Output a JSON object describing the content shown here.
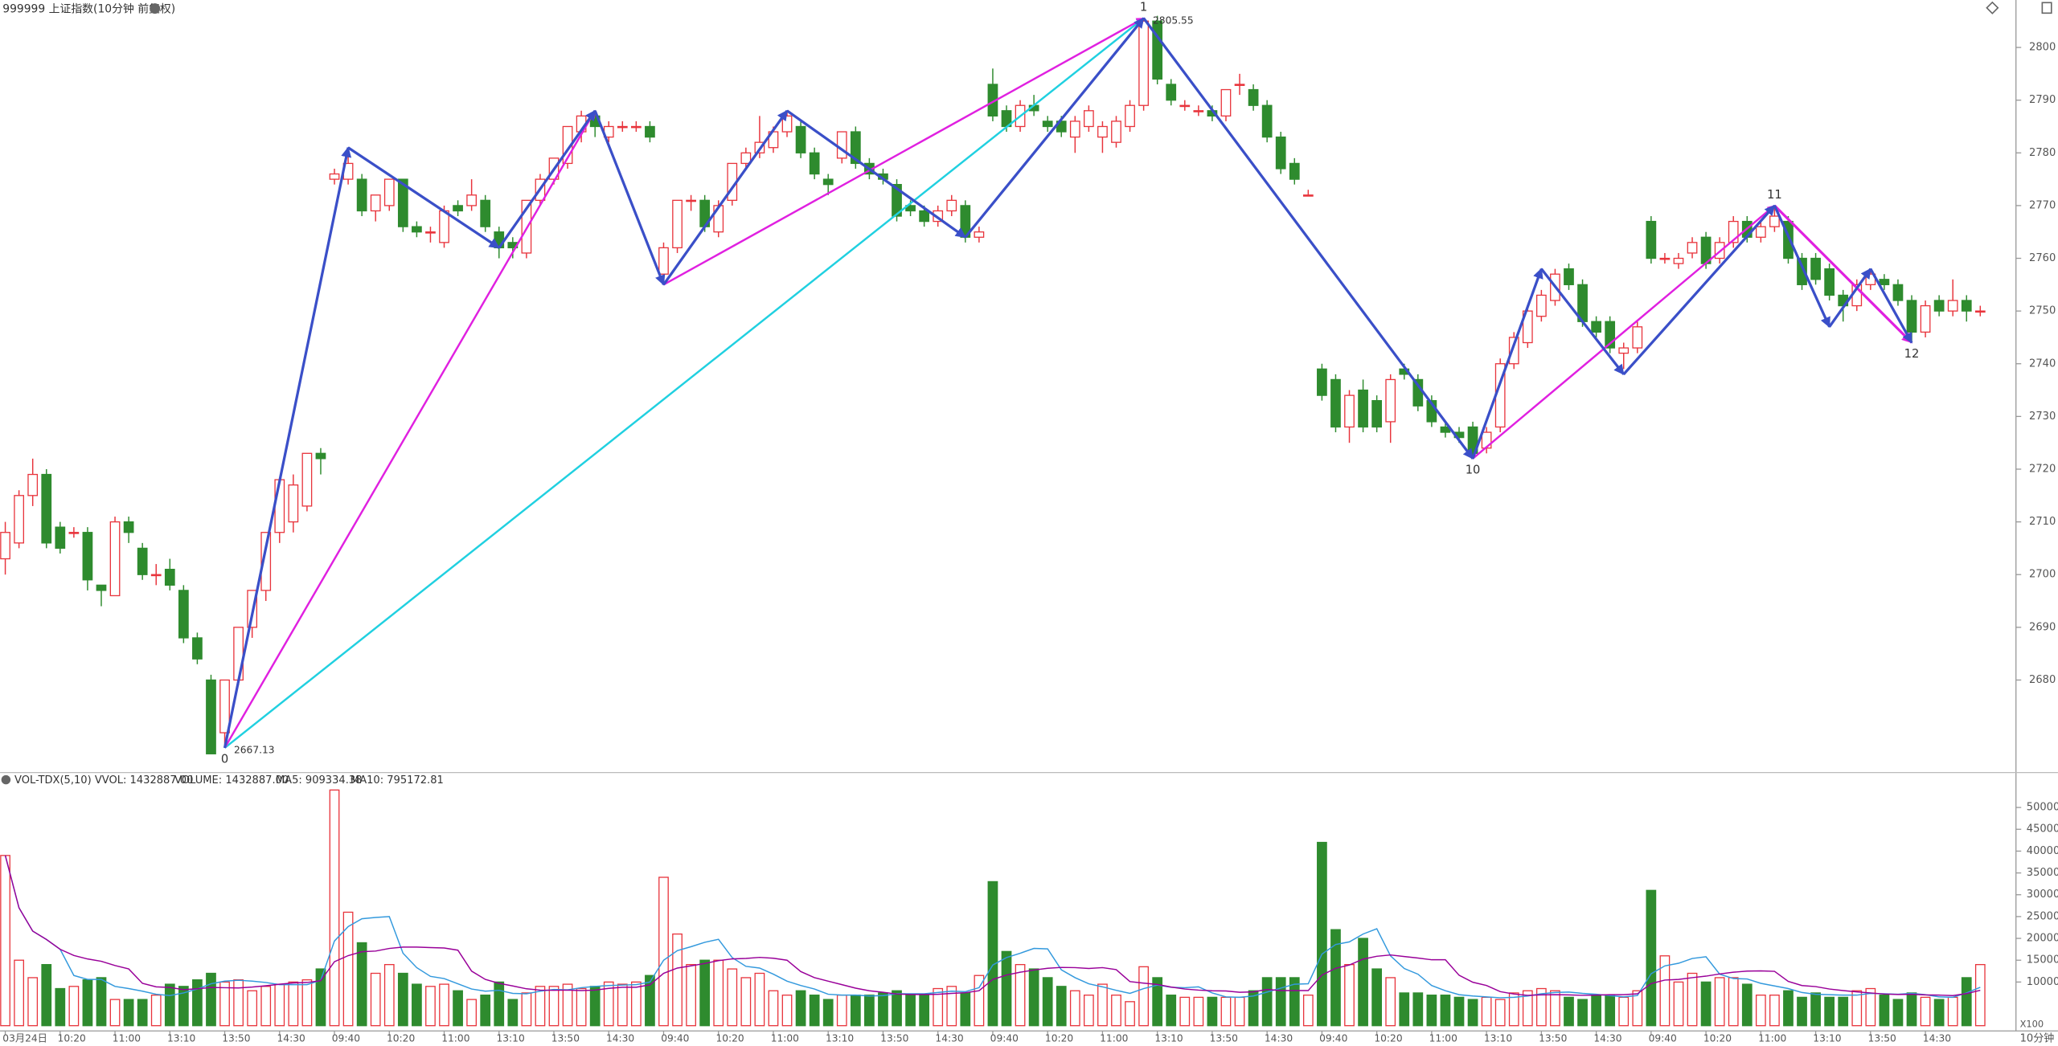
{
  "chart_data": {
    "type": "candlestick",
    "title": "999999 上证指数(10分钟 前复权)",
    "up_color": "#e8343c",
    "down_color": "#2e8b2e",
    "categories": [
      "03月24日",
      null,
      null,
      null,
      "10:20",
      null,
      null,
      null,
      "11:00",
      null,
      null,
      null,
      "13:10",
      null,
      null,
      null,
      "13:50",
      null,
      null,
      null,
      "14:30",
      null,
      null,
      null,
      "09:40",
      null,
      null,
      null,
      "10:20",
      null,
      null,
      null,
      "11:00",
      null,
      null,
      null,
      "13:10",
      null,
      null,
      null,
      "13:50",
      null,
      null,
      null,
      "14:30",
      null,
      null,
      null,
      "09:40",
      null,
      null,
      null,
      "10:20",
      null,
      null,
      null,
      "11:00",
      null,
      null,
      null,
      "13:10",
      null,
      null,
      null,
      "13:50",
      null,
      null,
      null,
      "14:30",
      null,
      null,
      null,
      "09:40",
      null,
      null,
      null,
      "10:20",
      null,
      null,
      null,
      "11:00",
      null,
      null,
      null,
      "13:10",
      null,
      null,
      null,
      "13:50",
      null,
      null,
      null,
      "14:30",
      null,
      null,
      null,
      "09:40",
      null,
      null,
      null,
      "10:20",
      null,
      null,
      null,
      "11:00",
      null,
      null,
      null,
      "13:10",
      null,
      null,
      null,
      "13:50",
      null,
      null,
      null,
      "14:30",
      null,
      null,
      null,
      "09:40",
      null,
      null,
      null,
      "10:20",
      null,
      null,
      null,
      "11:00",
      null,
      null,
      null,
      "13:10",
      null,
      null,
      null,
      "13:50",
      null,
      null,
      null,
      "14:30",
      null,
      null,
      null,
      null
    ],
    "ohlc": [
      [
        2703,
        2710,
        2700,
        2708
      ],
      [
        2706,
        2716,
        2705,
        2715
      ],
      [
        2715,
        2722,
        2713,
        2719
      ],
      [
        2719,
        2720,
        2705,
        2706
      ],
      [
        2709,
        2710,
        2704,
        2705
      ],
      [
        2708,
        2709,
        2707,
        2708
      ],
      [
        2708,
        2709,
        2697,
        2699
      ],
      [
        2698,
        2698,
        2694,
        2697
      ],
      [
        2696,
        2711,
        2696,
        2710
      ],
      [
        2710,
        2711,
        2706,
        2708
      ],
      [
        2705,
        2706,
        2699,
        2700
      ],
      [
        2700,
        2702,
        2698,
        2700
      ],
      [
        2701,
        2703,
        2697,
        2698
      ],
      [
        2697,
        2698,
        2687,
        2688
      ],
      [
        2688,
        2689,
        2683,
        2684
      ],
      [
        2680,
        2681,
        2666,
        2666
      ],
      [
        2670,
        2680,
        2667.13,
        2680
      ],
      [
        2680,
        2690,
        2679,
        2690
      ],
      [
        2690,
        2697,
        2688,
        2697
      ],
      [
        2697,
        2708,
        2695,
        2708
      ],
      [
        2708,
        2718,
        2706,
        2718
      ],
      [
        2710,
        2719,
        2708,
        2717
      ],
      [
        2713,
        2723,
        2712,
        2723
      ],
      [
        2723,
        2724,
        2719,
        2722
      ],
      [
        2775,
        2777,
        2774,
        2776
      ],
      [
        2775,
        2781,
        2774,
        2778
      ],
      [
        2775,
        2776,
        2768,
        2769
      ],
      [
        2769,
        2772,
        2767,
        2772
      ],
      [
        2770,
        2775,
        2769,
        2775
      ],
      [
        2775,
        2775,
        2765,
        2766
      ],
      [
        2766,
        2767,
        2764,
        2765
      ],
      [
        2765,
        2766,
        2763,
        2765
      ],
      [
        2763,
        2770,
        2762,
        2769
      ],
      [
        2770,
        2771,
        2768,
        2769
      ],
      [
        2770,
        2775,
        2769,
        2772
      ],
      [
        2771,
        2772,
        2765,
        2766
      ],
      [
        2765,
        2766,
        2760,
        2762
      ],
      [
        2763,
        2764,
        2760,
        2762
      ],
      [
        2761,
        2771,
        2760,
        2771
      ],
      [
        2771,
        2776,
        2770,
        2775
      ],
      [
        2775,
        2779,
        2774,
        2779
      ],
      [
        2778,
        2785,
        2777,
        2785
      ],
      [
        2784,
        2788,
        2782,
        2787
      ],
      [
        2787,
        2788,
        2783,
        2785
      ],
      [
        2783,
        2786,
        2782,
        2785
      ],
      [
        2785,
        2786,
        2784,
        2785
      ],
      [
        2785,
        2786,
        2784,
        2785
      ],
      [
        2785,
        2786,
        2782,
        2783
      ],
      [
        2757,
        2763,
        2755,
        2762
      ],
      [
        2762,
        2771,
        2761,
        2771
      ],
      [
        2771,
        2772,
        2769,
        2771
      ],
      [
        2771,
        2772,
        2765,
        2766
      ],
      [
        2765,
        2771,
        2764,
        2770
      ],
      [
        2771,
        2778,
        2770,
        2778
      ],
      [
        2778,
        2781,
        2777,
        2780
      ],
      [
        2780,
        2787,
        2779,
        2782
      ],
      [
        2781,
        2785,
        2780,
        2784
      ],
      [
        2784,
        2788,
        2783,
        2787
      ],
      [
        2785,
        2786,
        2779,
        2780
      ],
      [
        2780,
        2781,
        2775,
        2776
      ],
      [
        2775,
        2776,
        2772,
        2774
      ],
      [
        2779,
        2784,
        2778,
        2784
      ],
      [
        2784,
        2785,
        2777,
        2778
      ],
      [
        2778,
        2779,
        2775,
        2776
      ],
      [
        2776,
        2777,
        2774,
        2775
      ],
      [
        2774,
        2775,
        2767,
        2768
      ],
      [
        2770,
        2771,
        2768,
        2769
      ],
      [
        2769,
        2770,
        2766,
        2767
      ],
      [
        2767,
        2770,
        2766,
        2769
      ],
      [
        2769,
        2772,
        2768,
        2771
      ],
      [
        2770,
        2771,
        2763,
        2764
      ],
      [
        2764,
        2766,
        2763,
        2765
      ],
      [
        2793,
        2796,
        2786,
        2787
      ],
      [
        2788,
        2789,
        2784,
        2785
      ],
      [
        2785,
        2790,
        2784,
        2789
      ],
      [
        2789,
        2791,
        2787,
        2788
      ],
      [
        2786,
        2787,
        2784,
        2785
      ],
      [
        2786,
        2787,
        2783,
        2784
      ],
      [
        2783,
        2787,
        2780,
        2786
      ],
      [
        2785,
        2789,
        2784,
        2788
      ],
      [
        2783,
        2786,
        2780,
        2785
      ],
      [
        2782,
        2787,
        2781,
        2786
      ],
      [
        2785,
        2790,
        2784,
        2789
      ],
      [
        2789,
        2805.55,
        2788,
        2805
      ],
      [
        2805,
        2806,
        2793,
        2794
      ],
      [
        2793,
        2794,
        2789,
        2790
      ],
      [
        2789,
        2790,
        2788,
        2789
      ],
      [
        2788,
        2789,
        2787,
        2788
      ],
      [
        2788,
        2789,
        2786,
        2787
      ],
      [
        2787,
        2792,
        2786,
        2792
      ],
      [
        2793,
        2795,
        2791,
        2793
      ],
      [
        2792,
        2793,
        2788,
        2789
      ],
      [
        2789,
        2790,
        2782,
        2783
      ],
      [
        2783,
        2784,
        2776,
        2777
      ],
      [
        2778,
        2779,
        2774,
        2775
      ],
      [
        2772,
        2773,
        2772,
        2772
      ],
      [
        2739,
        2740,
        2733,
        2734
      ],
      [
        2737,
        2738,
        2727,
        2728
      ],
      [
        2728,
        2735,
        2725,
        2734
      ],
      [
        2735,
        2737,
        2727,
        2728
      ],
      [
        2733,
        2734,
        2727,
        2728
      ],
      [
        2729,
        2738,
        2725,
        2737
      ],
      [
        2739,
        2740,
        2737,
        2738
      ],
      [
        2737,
        2738,
        2731,
        2732
      ],
      [
        2733,
        2734,
        2728,
        2729
      ],
      [
        2728,
        2729,
        2726,
        2727
      ],
      [
        2727,
        2728,
        2725,
        2726
      ],
      [
        2728,
        2729,
        2722,
        2723
      ],
      [
        2724,
        2728,
        2723,
        2727
      ],
      [
        2728,
        2741,
        2727,
        2740
      ],
      [
        2740,
        2746,
        2739,
        2745
      ],
      [
        2744,
        2751,
        2743,
        2750
      ],
      [
        2749,
        2754,
        2748,
        2753
      ],
      [
        2752,
        2758,
        2751,
        2757
      ],
      [
        2758,
        2759,
        2754,
        2755
      ],
      [
        2755,
        2756,
        2747,
        2748
      ],
      [
        2748,
        2749,
        2745,
        2746
      ],
      [
        2748,
        2749,
        2742,
        2743
      ],
      [
        2742,
        2744,
        2739,
        2743
      ],
      [
        2743,
        2748,
        2742,
        2747
      ],
      [
        2767,
        2768,
        2759,
        2760
      ],
      [
        2760,
        2761,
        2759,
        2760
      ],
      [
        2759,
        2761,
        2758,
        2760
      ],
      [
        2761,
        2764,
        2760,
        2763
      ],
      [
        2764,
        2765,
        2758,
        2759
      ],
      [
        2760,
        2764,
        2759,
        2763
      ],
      [
        2763,
        2768,
        2762,
        2767
      ],
      [
        2767,
        2768,
        2763,
        2764
      ],
      [
        2764,
        2767,
        2763,
        2766
      ],
      [
        2766,
        2770,
        2765,
        2768
      ],
      [
        2767,
        2768,
        2759,
        2760
      ],
      [
        2760,
        2761,
        2754,
        2755
      ],
      [
        2760,
        2761,
        2755,
        2756
      ],
      [
        2758,
        2759,
        2752,
        2753
      ],
      [
        2753,
        2754,
        2748,
        2751
      ],
      [
        2751,
        2756,
        2750,
        2755
      ],
      [
        2755,
        2758,
        2754,
        2757
      ],
      [
        2756,
        2757,
        2754,
        2755
      ],
      [
        2755,
        2756,
        2751,
        2752
      ],
      [
        2752,
        2753,
        2744,
        2746
      ],
      [
        2746,
        2752,
        2745,
        2751
      ],
      [
        2752,
        2753,
        2749,
        2750
      ],
      [
        2750,
        2756,
        2749,
        2752
      ],
      [
        2752,
        2753,
        2748,
        2750
      ],
      [
        2750,
        2751,
        2749,
        2750
      ]
    ],
    "ylim": [
      2662.7,
      2809
    ],
    "yticks": [
      2680,
      2690,
      2700,
      2710,
      2720,
      2730,
      2740,
      2750,
      2760,
      2770,
      2780,
      2790,
      2800
    ],
    "pivots": [
      {
        "x": 16,
        "y": 2667.13,
        "label": "0",
        "side": "below",
        "price_label": true
      },
      {
        "x": 25,
        "y": 2781
      },
      {
        "x": 36,
        "y": 2762
      },
      {
        "x": 43,
        "y": 2788
      },
      {
        "x": 48,
        "y": 2755
      },
      {
        "x": 57,
        "y": 2788
      },
      {
        "x": 70,
        "y": 2764
      },
      {
        "x": 83,
        "y": 2805.55,
        "label": "1",
        "side": "above",
        "price_label": true
      },
      {
        "x": 107,
        "y": 2722,
        "label": "10",
        "side": "below"
      },
      {
        "x": 112,
        "y": 2758
      },
      {
        "x": 118,
        "y": 2738
      },
      {
        "x": 129,
        "y": 2770,
        "label": "11",
        "side": "above"
      },
      {
        "x": 133,
        "y": 2747
      },
      {
        "x": 136,
        "y": 2758
      },
      {
        "x": 139,
        "y": 2744,
        "label": "12",
        "side": "below"
      }
    ],
    "waves": [
      {
        "color": "#20d0e0",
        "width": 1.5,
        "path": [
          0,
          7
        ]
      },
      {
        "color": "#e020e0",
        "width": 1.5,
        "path": [
          0,
          3
        ]
      },
      {
        "color": "#e020e0",
        "width": 1.5,
        "path": [
          4,
          7
        ]
      },
      {
        "color": "#e020e0",
        "width": 1.5,
        "path": [
          8,
          11
        ]
      },
      {
        "color": "#e020e0",
        "width": 2,
        "path": [
          11,
          14
        ]
      },
      {
        "color": "#3a4fc8",
        "width": 2,
        "path": [
          0,
          1,
          2,
          3,
          4,
          5,
          6,
          7,
          8,
          9,
          10,
          11,
          12,
          13,
          14
        ]
      }
    ],
    "volume": {
      "label": "VOL-TDX(5,10) VVOL: 1432887.00",
      "volume_text": "VOLUME: 1432887.00",
      "ma5_text": "MA5: 909334.38",
      "ma10_text": "MA10: 795172.81",
      "ma5_color": "#3399dd",
      "ma10_color": "#990099",
      "unit": "X100",
      "values": [
        39000,
        15000,
        11000,
        14000,
        8500,
        9000,
        10500,
        11000,
        6000,
        6000,
        6000,
        7000,
        9500,
        9000,
        10500,
        12000,
        10000,
        10500,
        8000,
        9000,
        9500,
        10000,
        10500,
        13000,
        54000,
        26000,
        19000,
        12000,
        14000,
        12000,
        9500,
        9000,
        9500,
        8000,
        6000,
        7000,
        10000,
        6000,
        7500,
        9000,
        9000,
        9500,
        8500,
        9000,
        10000,
        9500,
        10000,
        11500,
        34000,
        21000,
        14000,
        15000,
        15000,
        13000,
        11000,
        12000,
        8000,
        7000,
        8000,
        7000,
        6000,
        7000,
        7000,
        7000,
        7500,
        8000,
        7000,
        7000,
        8500,
        9000,
        7500,
        11500,
        33000,
        17000,
        14000,
        13000,
        11000,
        9000,
        8000,
        7000,
        9500,
        7000,
        5500,
        13500,
        11000,
        7000,
        6500,
        6500,
        6500,
        6500,
        6500,
        8000,
        11000,
        11000,
        11000,
        7000,
        42000,
        22000,
        14000,
        20000,
        13000,
        11000,
        7500,
        7500,
        7000,
        7000,
        6500,
        6000,
        6500,
        6000,
        7500,
        8000,
        8500,
        8000,
        6500,
        6000,
        7000,
        7000,
        6500,
        8000,
        31000,
        16000,
        10000,
        12000,
        10000,
        11000,
        11000,
        9500,
        7000,
        7000,
        8000,
        6500,
        7500,
        6500,
        6500,
        8000,
        8500,
        7000,
        6000,
        7500,
        6500,
        6000,
        6500,
        11000,
        14000
      ],
      "ylim": [
        0,
        55000
      ],
      "yticks": [
        10000,
        15000,
        20000,
        25000,
        30000,
        35000,
        40000,
        45000,
        50000
      ]
    },
    "period": "10分钟"
  }
}
